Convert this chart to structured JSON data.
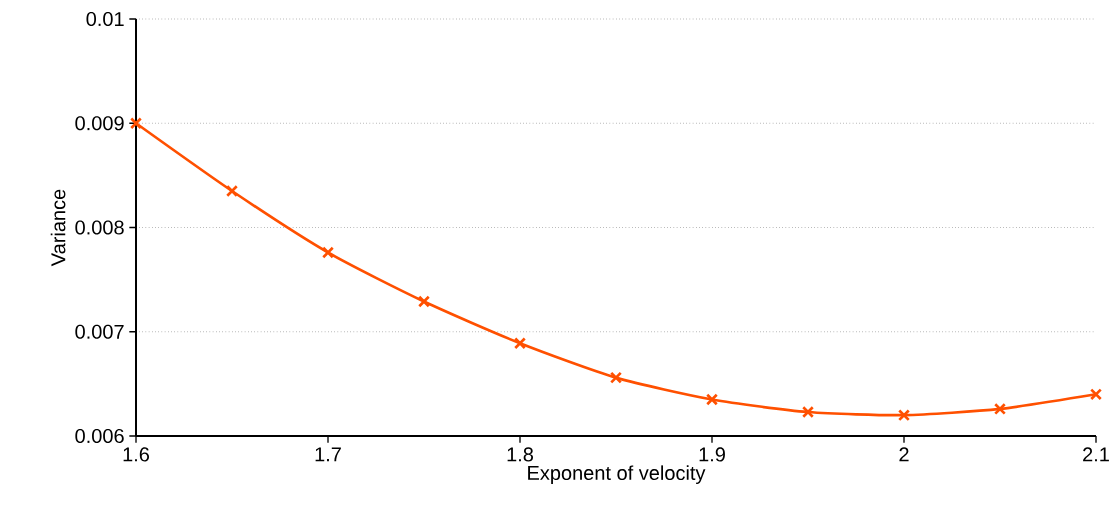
{
  "chart_data": {
    "type": "line",
    "xlabel": "Exponent of velocity",
    "ylabel": "Variance",
    "x": [
      1.6,
      1.65,
      1.7,
      1.75,
      1.8,
      1.85,
      1.9,
      1.95,
      2.0,
      2.05,
      2.1
    ],
    "series": [
      {
        "color": "#ff5000",
        "values": [
          0.009,
          0.00835,
          0.00776,
          0.00729,
          0.00689,
          0.00656,
          0.00635,
          0.00623,
          0.0062,
          0.00626,
          0.0064
        ]
      }
    ],
    "xlim": [
      1.6,
      2.1
    ],
    "xticks": [
      1.6,
      1.7,
      1.8,
      1.9,
      2,
      2.1
    ],
    "ylim": [
      0.006,
      0.01
    ],
    "yticks": [
      0.006,
      0.007,
      0.008,
      0.009,
      0.01
    ],
    "grid": "y",
    "marker": "cross",
    "line_style": "solid"
  }
}
